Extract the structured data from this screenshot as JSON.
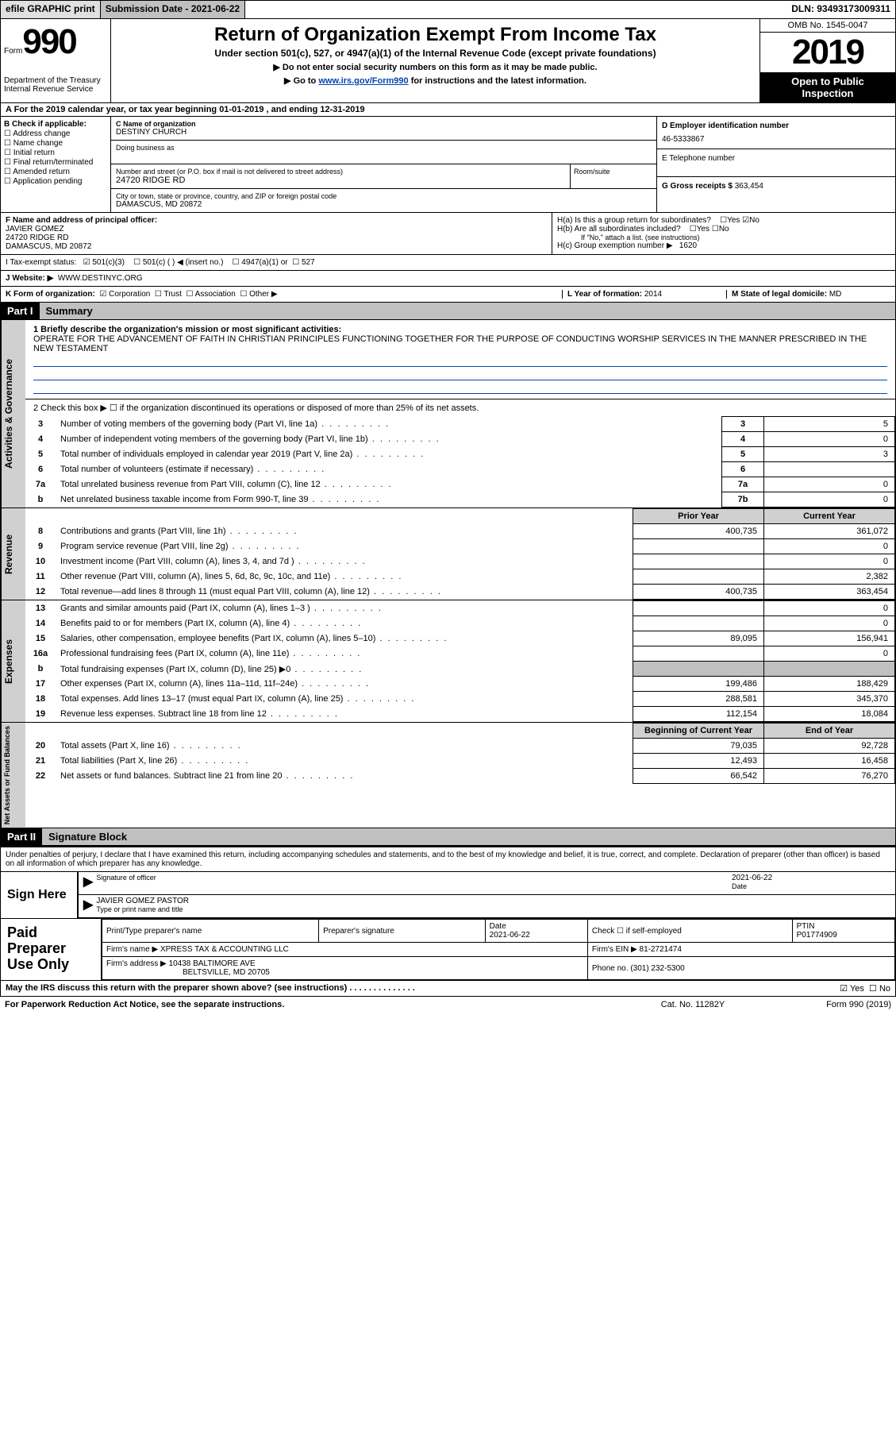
{
  "top_bar": {
    "efile": "efile GRAPHIC print",
    "submission_label": "Submission Date - 2021-06-22",
    "dln": "DLN: 93493173009311"
  },
  "header": {
    "form_prefix": "Form",
    "form_number": "990",
    "dept1": "Department of the Treasury",
    "dept2": "Internal Revenue Service",
    "title": "Return of Organization Exempt From Income Tax",
    "subtitle": "Under section 501(c), 527, or 4947(a)(1) of the Internal Revenue Code (except private foundations)",
    "note1": "▶ Do not enter social security numbers on this form as it may be made public.",
    "note2_pre": "▶ Go to ",
    "note2_link": "www.irs.gov/Form990",
    "note2_post": " for instructions and the latest information.",
    "omb": "OMB No. 1545-0047",
    "year": "2019",
    "open1": "Open to Public",
    "open2": "Inspection"
  },
  "row_a": "A For the 2019 calendar year, or tax year beginning 01-01-2019   , and ending 12-31-2019",
  "box_b": {
    "title": "B Check if applicable:",
    "opts": [
      "Address change",
      "Name change",
      "Initial return",
      "Final return/terminated",
      "Amended return",
      "Application pending"
    ]
  },
  "box_c": {
    "name_label": "C Name of organization",
    "name": "DESTINY CHURCH",
    "dba_label": "Doing business as",
    "addr_label": "Number and street (or P.O. box if mail is not delivered to street address)",
    "room_label": "Room/suite",
    "addr": "24720 RIDGE RD",
    "city_label": "City or town, state or province, country, and ZIP or foreign postal code",
    "city": "DAMASCUS, MD  20872"
  },
  "box_d": {
    "label": "D Employer identification number",
    "value": "46-5333867"
  },
  "box_e": {
    "label": "E Telephone number",
    "value": ""
  },
  "box_g": {
    "label": "G Gross receipts $",
    "value": "363,454"
  },
  "box_f": {
    "label": "F Name and address of principal officer:",
    "name": "JAVIER GOMEZ",
    "addr1": "24720 RIDGE RD",
    "addr2": "DAMASCUS, MD  20872"
  },
  "box_h": {
    "a": "H(a)  Is this a group return for subordinates?",
    "a_yes": "Yes",
    "a_no": "No",
    "b": "H(b)  Are all subordinates included?",
    "b_yes": "Yes",
    "b_no": "No",
    "note": "If \"No,\" attach a list. (see instructions)",
    "c": "H(c)  Group exemption number ▶",
    "c_val": "1620"
  },
  "row_i": {
    "label": "I    Tax-exempt status:",
    "o1": "501(c)(3)",
    "o2": "501(c) (   ) ◀ (insert no.)",
    "o3": "4947(a)(1) or",
    "o4": "527"
  },
  "row_j": {
    "label": "J   Website: ▶",
    "value": "WWW.DESTINYC.ORG"
  },
  "row_k": {
    "label": "K Form of organization:",
    "o1": "Corporation",
    "o2": "Trust",
    "o3": "Association",
    "o4": "Other ▶",
    "l_label": "L Year of formation:",
    "l_val": "2014",
    "m_label": "M State of legal domicile:",
    "m_val": "MD"
  },
  "part1": {
    "header": "Part I",
    "title": "Summary",
    "side1": "Activities & Governance",
    "side2": "Revenue",
    "side3": "Expenses",
    "side4": "Net Assets or Fund Balances",
    "q1_label": "1   Briefly describe the organization's mission or most significant activities:",
    "q1_text": "OPERATE FOR THE ADVANCEMENT OF FAITH IN CHRISTIAN PRINCIPLES FUNCTIONING TOGETHER FOR THE PURPOSE OF CONDUCTING WORSHIP SERVICES IN THE MANNER PRESCRIBED IN THE NEW TESTAMENT",
    "q2": "2   Check this box ▶ ☐ if the organization discontinued its operations or disposed of more than 25% of its net assets.",
    "rows_gov": [
      {
        "n": "3",
        "t": "Number of voting members of the governing body (Part VI, line 1a)",
        "r": "3",
        "v": "5"
      },
      {
        "n": "4",
        "t": "Number of independent voting members of the governing body (Part VI, line 1b)",
        "r": "4",
        "v": "0"
      },
      {
        "n": "5",
        "t": "Total number of individuals employed in calendar year 2019 (Part V, line 2a)",
        "r": "5",
        "v": "3"
      },
      {
        "n": "6",
        "t": "Total number of volunteers (estimate if necessary)",
        "r": "6",
        "v": ""
      },
      {
        "n": "7a",
        "t": "Total unrelated business revenue from Part VIII, column (C), line 12",
        "r": "7a",
        "v": "0"
      },
      {
        "n": "b",
        "t": "Net unrelated business taxable income from Form 990-T, line 39",
        "r": "7b",
        "v": "0"
      }
    ],
    "col_headers": {
      "prior": "Prior Year",
      "current": "Current Year"
    },
    "rows_rev": [
      {
        "n": "8",
        "t": "Contributions and grants (Part VIII, line 1h)",
        "p": "400,735",
        "c": "361,072"
      },
      {
        "n": "9",
        "t": "Program service revenue (Part VIII, line 2g)",
        "p": "",
        "c": "0"
      },
      {
        "n": "10",
        "t": "Investment income (Part VIII, column (A), lines 3, 4, and 7d )",
        "p": "",
        "c": "0"
      },
      {
        "n": "11",
        "t": "Other revenue (Part VIII, column (A), lines 5, 6d, 8c, 9c, 10c, and 11e)",
        "p": "",
        "c": "2,382"
      },
      {
        "n": "12",
        "t": "Total revenue—add lines 8 through 11 (must equal Part VIII, column (A), line 12)",
        "p": "400,735",
        "c": "363,454"
      }
    ],
    "rows_exp": [
      {
        "n": "13",
        "t": "Grants and similar amounts paid (Part IX, column (A), lines 1–3 )",
        "p": "",
        "c": "0"
      },
      {
        "n": "14",
        "t": "Benefits paid to or for members (Part IX, column (A), line 4)",
        "p": "",
        "c": "0"
      },
      {
        "n": "15",
        "t": "Salaries, other compensation, employee benefits (Part IX, column (A), lines 5–10)",
        "p": "89,095",
        "c": "156,941"
      },
      {
        "n": "16a",
        "t": "Professional fundraising fees (Part IX, column (A), line 11e)",
        "p": "",
        "c": "0"
      },
      {
        "n": "b",
        "t": "Total fundraising expenses (Part IX, column (D), line 25) ▶0",
        "p": "GREY",
        "c": "GREY"
      },
      {
        "n": "17",
        "t": "Other expenses (Part IX, column (A), lines 11a–11d, 11f–24e)",
        "p": "199,486",
        "c": "188,429"
      },
      {
        "n": "18",
        "t": "Total expenses. Add lines 13–17 (must equal Part IX, column (A), line 25)",
        "p": "288,581",
        "c": "345,370"
      },
      {
        "n": "19",
        "t": "Revenue less expenses. Subtract line 18 from line 12",
        "p": "112,154",
        "c": "18,084"
      }
    ],
    "col_headers2": {
      "begin": "Beginning of Current Year",
      "end": "End of Year"
    },
    "rows_net": [
      {
        "n": "20",
        "t": "Total assets (Part X, line 16)",
        "p": "79,035",
        "c": "92,728"
      },
      {
        "n": "21",
        "t": "Total liabilities (Part X, line 26)",
        "p": "12,493",
        "c": "16,458"
      },
      {
        "n": "22",
        "t": "Net assets or fund balances. Subtract line 21 from line 20",
        "p": "66,542",
        "c": "76,270"
      }
    ]
  },
  "part2": {
    "header": "Part II",
    "title": "Signature Block",
    "penalty": "Under penalties of perjury, I declare that I have examined this return, including accompanying schedules and statements, and to the best of my knowledge and belief, it is true, correct, and complete. Declaration of preparer (other than officer) is based on all information of which preparer has any knowledge.",
    "sign_here": "Sign Here",
    "sig_officer": "Signature of officer",
    "sig_date": "2021-06-22",
    "date_label": "Date",
    "officer_name": "JAVIER GOMEZ PASTOR",
    "type_name": "Type or print name and title",
    "paid_label": "Paid Preparer Use Only",
    "prep_name_h": "Print/Type preparer's name",
    "prep_sig_h": "Preparer's signature",
    "prep_date_h": "Date",
    "prep_date": "2021-06-22",
    "prep_check_h": "Check ☐ if self-employed",
    "ptin_h": "PTIN",
    "ptin": "P01774909",
    "firm_name_h": "Firm's name    ▶",
    "firm_name": "XPRESS TAX & ACCOUNTING LLC",
    "firm_ein_h": "Firm's EIN ▶",
    "firm_ein": "81-2721474",
    "firm_addr_h": "Firm's address ▶",
    "firm_addr1": "10438 BALTIMORE AVE",
    "firm_addr2": "BELTSVILLE, MD  20705",
    "phone_h": "Phone no.",
    "phone": "(301) 232-5300",
    "discuss": "May the IRS discuss this return with the preparer shown above? (see instructions)",
    "d_yes": "Yes",
    "d_no": "No"
  },
  "footer": {
    "left": "For Paperwork Reduction Act Notice, see the separate instructions.",
    "mid": "Cat. No. 11282Y",
    "right": "Form 990 (2019)"
  },
  "colors": {
    "link": "#0645ad",
    "header_bg": "#000000",
    "grey_bg": "#c0c0c0",
    "light_grey": "#d0d0d0"
  }
}
